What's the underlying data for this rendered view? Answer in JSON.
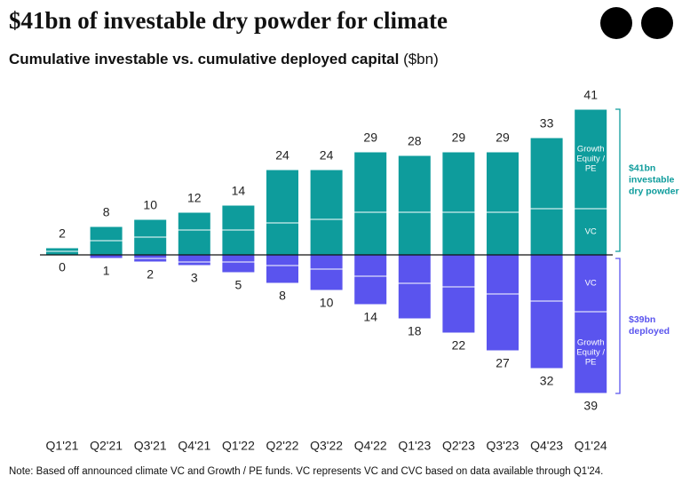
{
  "title": "$41bn of investable dry powder for climate",
  "subtitle": "Cumulative investable vs. cumulative deployed capital",
  "subtitle_unit": "($bn)",
  "note": "Note: Based off announced climate VC and Growth / PE funds. VC represents VC and CVC based on data available through Q1'24.",
  "chart_data": {
    "type": "diverging-stacked-bar",
    "categories": [
      "Q1'21",
      "Q2'21",
      "Q3'21",
      "Q4'21",
      "Q1'22",
      "Q2'22",
      "Q3'22",
      "Q4'22",
      "Q1'23",
      "Q2'23",
      "Q3'23",
      "Q4'23",
      "Q1'24"
    ],
    "ylim": [
      -50,
      50
    ],
    "groups": [
      {
        "annotation": "$41bn investable dry powder",
        "side": "up",
        "color": "#0e9c9c",
        "totals": [
          2,
          8,
          10,
          12,
          14,
          24,
          24,
          29,
          28,
          29,
          29,
          33,
          41
        ],
        "series": [
          {
            "name": "VC",
            "values": [
              1,
              4,
              5,
              7,
              7,
              9,
              10,
              12,
              12,
              12,
              12,
              13,
              13
            ]
          },
          {
            "name": "Growth Equity / PE",
            "values": [
              1,
              4,
              5,
              5,
              7,
              15,
              14,
              17,
              16,
              17,
              17,
              20,
              28
            ]
          }
        ]
      },
      {
        "annotation": "$39bn deployed",
        "side": "down",
        "color": "#5a54ee",
        "totals": [
          0,
          1,
          2,
          3,
          5,
          8,
          10,
          14,
          18,
          22,
          27,
          32,
          39
        ],
        "series": [
          {
            "name": "VC",
            "values": [
              0,
              1,
              1,
              2,
              2,
              3,
              4,
              6,
              8,
              9,
              11,
              13,
              16
            ]
          },
          {
            "name": "Growth Equity / PE",
            "values": [
              0,
              0,
              1,
              1,
              3,
              5,
              6,
              8,
              10,
              13,
              16,
              19,
              23
            ]
          }
        ]
      }
    ]
  }
}
